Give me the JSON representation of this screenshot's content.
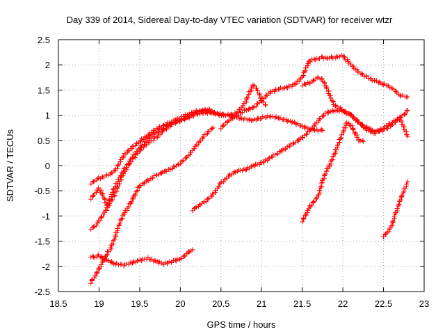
{
  "chart_data": {
    "type": "scatter",
    "title": "Day 339 of 2014, Sidereal Day-to-day VTEC variation (SDTVAR) for receiver wtzr",
    "xlabel": "GPS time / hours",
    "ylabel": "SDTVAR / TECUs",
    "xlim": [
      18.5,
      23
    ],
    "ylim": [
      -2.5,
      2.5
    ],
    "xticks": [
      18.5,
      19,
      19.5,
      20,
      20.5,
      21,
      21.5,
      22,
      22.5,
      23
    ],
    "xtick_labels": [
      "18.5",
      "19",
      "19.5",
      "20",
      "20.5",
      "21",
      "21.5",
      "22",
      "22.5",
      "23"
    ],
    "yticks": [
      -2.5,
      -2,
      -1.5,
      -1,
      -0.5,
      0,
      0.5,
      1,
      1.5,
      2,
      2.5
    ],
    "ytick_labels": [
      "-2.5",
      "-2",
      "-1.5",
      "-1",
      "-0.5",
      "0",
      "0.5",
      "1",
      "1.5",
      "2",
      "2.5"
    ],
    "grid": true,
    "marker": "+",
    "color": "#ff0000",
    "series": [
      {
        "x": [
          18.9,
          18.95,
          19.0,
          19.05,
          19.1,
          19.2,
          19.3,
          19.4,
          19.5,
          19.6,
          19.7,
          19.8,
          19.9,
          20.0,
          20.05,
          20.1,
          20.15
        ],
        "y": [
          -1.8,
          -1.82,
          -1.78,
          -1.85,
          -1.88,
          -1.95,
          -1.97,
          -1.93,
          -1.88,
          -1.84,
          -1.9,
          -1.95,
          -1.9,
          -1.85,
          -1.8,
          -1.72,
          -1.67
        ]
      },
      {
        "x": [
          18.9,
          18.92,
          18.95,
          19.0,
          19.05,
          19.1,
          19.15,
          19.2,
          19.25,
          19.3,
          19.35,
          19.4,
          19.45,
          19.5,
          19.6,
          19.7,
          19.8,
          19.9,
          20.0,
          20.1,
          20.2,
          20.3,
          20.4
        ],
        "y": [
          -2.32,
          -2.25,
          -2.2,
          -2.05,
          -1.9,
          -1.75,
          -1.62,
          -1.4,
          -1.15,
          -0.98,
          -0.85,
          -0.7,
          -0.55,
          -0.4,
          -0.3,
          -0.2,
          -0.12,
          -0.05,
          0.05,
          0.2,
          0.4,
          0.6,
          0.75
        ]
      },
      {
        "x": [
          18.9,
          18.95,
          19.0,
          19.1,
          19.2,
          19.3,
          19.4,
          19.5,
          19.6,
          19.7,
          19.8,
          19.9,
          20.0,
          20.1,
          20.2,
          20.3,
          20.35,
          20.4
        ],
        "y": [
          -1.25,
          -1.2,
          -1.1,
          -0.85,
          -0.55,
          -0.15,
          0.1,
          0.3,
          0.45,
          0.55,
          0.7,
          0.82,
          0.9,
          0.98,
          1.05,
          1.1,
          1.12,
          1.05
        ]
      },
      {
        "x": [
          18.9,
          18.95,
          19.0,
          19.1,
          19.2,
          19.3,
          19.4,
          19.5,
          19.6,
          19.7,
          19.8,
          19.9,
          20.0,
          20.1,
          20.2,
          20.3,
          20.4,
          20.5,
          20.6,
          20.7,
          20.8,
          20.85,
          20.9,
          20.95,
          21.0,
          21.05
        ],
        "y": [
          -0.35,
          -0.3,
          -0.25,
          -0.2,
          -0.1,
          0.2,
          0.35,
          0.48,
          0.6,
          0.72,
          0.8,
          0.88,
          0.95,
          1.02,
          1.08,
          1.1,
          1.05,
          1.0,
          1.0,
          1.05,
          1.25,
          1.45,
          1.6,
          1.5,
          1.3,
          1.2
        ]
      },
      {
        "x": [
          18.9,
          18.95,
          19.0,
          19.05,
          19.1,
          19.2,
          19.3,
          19.4,
          19.5,
          19.6,
          19.7,
          19.8,
          19.9,
          20.0,
          20.1,
          20.2,
          20.3,
          20.4,
          20.5,
          20.6,
          20.7,
          20.8,
          20.9,
          21.0,
          21.1,
          21.2,
          21.3,
          21.4,
          21.5,
          21.6,
          21.7,
          21.75
        ],
        "y": [
          -0.65,
          -0.55,
          -0.45,
          -0.6,
          -0.8,
          -0.4,
          -0.1,
          0.15,
          0.35,
          0.52,
          0.65,
          0.75,
          0.85,
          0.9,
          0.95,
          1.02,
          1.05,
          1.05,
          1.02,
          1.0,
          0.95,
          0.92,
          0.9,
          0.95,
          0.98,
          0.95,
          0.9,
          0.85,
          0.78,
          0.72,
          0.7,
          0.7
        ]
      },
      {
        "x": [
          20.15,
          20.2,
          20.3,
          20.4,
          20.5,
          20.6,
          20.7,
          20.8,
          20.9,
          21.0,
          21.1,
          21.2,
          21.3,
          21.4,
          21.5,
          21.6,
          21.7,
          21.8,
          21.9,
          22.0,
          22.1,
          22.2,
          22.3,
          22.4,
          22.5,
          22.6,
          22.7,
          22.75,
          22.8
        ],
        "y": [
          -0.88,
          -0.82,
          -0.72,
          -0.58,
          -0.35,
          -0.2,
          -0.1,
          -0.08,
          0.0,
          0.05,
          0.15,
          0.25,
          0.35,
          0.45,
          0.55,
          0.7,
          0.9,
          1.05,
          1.1,
          1.08,
          1.0,
          0.85,
          0.7,
          0.65,
          0.75,
          0.85,
          0.95,
          1.0,
          1.1
        ]
      },
      {
        "x": [
          20.5,
          20.6,
          20.7,
          20.8,
          20.9,
          21.0,
          21.1,
          21.2,
          21.3,
          21.4,
          21.5,
          21.55,
          21.6,
          21.7,
          21.75,
          21.8,
          21.85,
          21.9,
          22.0,
          22.1,
          22.2,
          22.3,
          22.4,
          22.5,
          22.6,
          22.7,
          22.8
        ],
        "y": [
          0.75,
          0.9,
          1.0,
          1.1,
          1.15,
          1.3,
          1.45,
          1.52,
          1.55,
          1.6,
          1.75,
          1.95,
          2.1,
          2.12,
          2.15,
          2.12,
          2.15,
          2.15,
          2.18,
          2.0,
          1.85,
          1.75,
          1.68,
          1.62,
          1.55,
          1.4,
          1.36
        ]
      },
      {
        "x": [
          21.5,
          21.55,
          21.6,
          21.7,
          21.75,
          21.8,
          21.85,
          21.9,
          21.95,
          22.0,
          22.05,
          22.1,
          22.15,
          22.2,
          22.25
        ],
        "y": [
          -1.1,
          -0.95,
          -0.8,
          -0.6,
          -0.3,
          -0.1,
          0.05,
          0.25,
          0.45,
          0.65,
          0.85,
          0.8,
          0.65,
          0.5,
          0.48
        ]
      },
      {
        "x": [
          21.5,
          21.6,
          21.7,
          21.75,
          21.8,
          21.85,
          21.9,
          22.0,
          22.1,
          22.2,
          22.3,
          22.4,
          22.5,
          22.6,
          22.7,
          22.75,
          22.8
        ],
        "y": [
          1.6,
          1.65,
          1.75,
          1.7,
          1.55,
          1.35,
          1.2,
          1.1,
          1.0,
          0.85,
          0.75,
          0.68,
          0.7,
          0.8,
          0.95,
          0.75,
          0.58
        ]
      },
      {
        "x": [
          22.5,
          22.55,
          22.6,
          22.65,
          22.7,
          22.75,
          22.8
        ],
        "y": [
          -1.4,
          -1.32,
          -1.2,
          -0.95,
          -0.72,
          -0.5,
          -0.32
        ]
      }
    ]
  }
}
